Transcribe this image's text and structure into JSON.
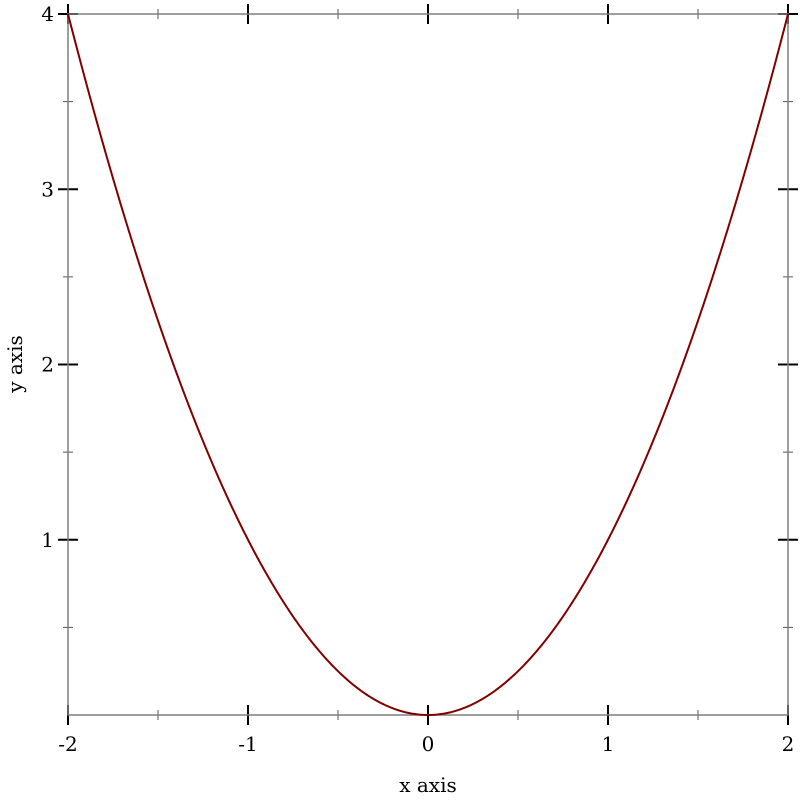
{
  "chart_data": {
    "type": "line",
    "title": "",
    "xlabel": "x axis",
    "ylabel": "y axis",
    "xlim": [
      -2,
      2
    ],
    "ylim": [
      0,
      4
    ],
    "x_ticks": [
      -2,
      -1,
      0,
      1,
      2
    ],
    "x_tick_labels": [
      "-2",
      "-1",
      "0",
      "1",
      "2"
    ],
    "y_ticks": [
      1,
      2,
      3,
      4
    ],
    "y_tick_labels": [
      "1",
      "2",
      "3",
      "4"
    ],
    "x_minor_ticks": [
      -1.5,
      -0.5,
      0.5,
      1.5
    ],
    "y_minor_ticks": [
      0.5,
      1.5,
      2.5,
      3.5
    ],
    "grid": false,
    "series": [
      {
        "function": "x^2",
        "color": "#800000",
        "x": [
          -2,
          -1.75,
          -1.5,
          -1.25,
          -1,
          -0.75,
          -0.5,
          -0.25,
          0,
          0.25,
          0.5,
          0.75,
          1,
          1.25,
          1.5,
          1.75,
          2
        ],
        "y": [
          4,
          3.0625,
          2.25,
          1.5625,
          1,
          0.5625,
          0.25,
          0.0625,
          0,
          0.0625,
          0.25,
          0.5625,
          1,
          1.5625,
          2.25,
          3.0625,
          4
        ]
      }
    ],
    "frame_color": "#7f7f7f"
  }
}
